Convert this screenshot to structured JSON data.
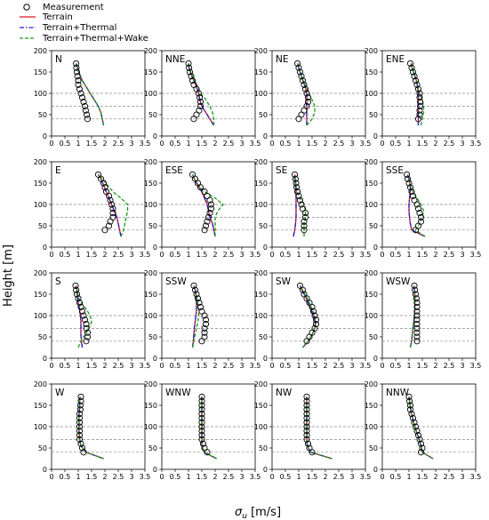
{
  "legend": {
    "measurement": "Measurement",
    "terrain": "Terrain",
    "terrain_thermal": "Terrain+Thermal",
    "terrain_thermal_wake": "Terrain+Thermal+Wake"
  },
  "axis": {
    "xlabel_main": "σ",
    "xlabel_sub": "u",
    "xlabel_unit": " [m/s]",
    "ylabel": "Height [m]"
  },
  "colors": {
    "measurement": "#000000",
    "terrain": "#e8141e",
    "terrain_thermal": "#1f1fd6",
    "terrain_thermal_wake": "#1a9a1a",
    "reference_lines": "#888888"
  },
  "chart_data": {
    "type": "line",
    "panel_layout": "4x4 grid of wind directions",
    "xlim": [
      0,
      3.5
    ],
    "ylim": [
      0,
      200
    ],
    "x_ticks": [
      "0",
      "0.5",
      "1",
      "1.5",
      "2",
      "2.5",
      "3",
      "3.5"
    ],
    "y_ticks": [
      "0",
      "50",
      "100",
      "150",
      "200"
    ],
    "reference_heights": [
      40,
      70,
      100
    ],
    "measurement_heights": [
      40,
      50,
      60,
      70,
      80,
      90,
      100,
      110,
      120,
      130,
      140,
      150,
      160,
      170
    ],
    "model_heights": [
      25,
      40,
      55,
      70,
      85,
      100,
      115,
      130,
      145,
      160,
      170
    ],
    "panels": [
      {
        "direction": "N",
        "measurement": [
          1.35,
          1.32,
          1.28,
          1.25,
          1.2,
          1.15,
          1.1,
          1.05,
          1.0,
          1.0,
          0.97,
          0.95,
          0.93,
          0.92
        ],
        "terrain": [
          1.95,
          1.9,
          1.85,
          1.75,
          1.6,
          1.45,
          1.3,
          1.15,
          1.05,
          0.97,
          0.93
        ],
        "terrain_thermal": [
          1.95,
          1.9,
          1.85,
          1.75,
          1.6,
          1.45,
          1.3,
          1.15,
          1.05,
          0.97,
          0.93
        ],
        "terrain_thermal_wake": [
          1.95,
          1.9,
          1.85,
          1.75,
          1.6,
          1.45,
          1.3,
          1.15,
          1.05,
          0.97,
          0.93
        ]
      },
      {
        "direction": "NNE",
        "measurement": [
          1.2,
          1.3,
          1.4,
          1.45,
          1.45,
          1.42,
          1.38,
          1.3,
          1.2,
          1.15,
          1.1,
          1.05,
          1.02,
          1.0
        ],
        "terrain": [
          1.95,
          1.8,
          1.65,
          1.5,
          1.42,
          1.38,
          1.3,
          1.2,
          1.1,
          1.02,
          1.0
        ],
        "terrain_thermal": [
          1.95,
          1.8,
          1.65,
          1.5,
          1.42,
          1.38,
          1.3,
          1.2,
          1.1,
          1.02,
          1.0
        ],
        "terrain_thermal_wake": [
          1.95,
          1.95,
          1.9,
          1.8,
          1.65,
          1.45,
          1.35,
          1.22,
          1.12,
          1.03,
          1.0
        ]
      },
      {
        "direction": "NE",
        "measurement": [
          1.0,
          1.1,
          1.2,
          1.3,
          1.35,
          1.35,
          1.3,
          1.25,
          1.2,
          1.15,
          1.1,
          1.05,
          1.0,
          0.95
        ],
        "terrain": [
          1.3,
          1.3,
          1.3,
          1.3,
          1.3,
          1.3,
          1.25,
          1.15,
          1.08,
          1.0,
          0.97
        ],
        "terrain_thermal": [
          1.3,
          1.3,
          1.3,
          1.3,
          1.3,
          1.3,
          1.25,
          1.15,
          1.08,
          1.0,
          0.97
        ],
        "terrain_thermal_wake": [
          1.3,
          1.5,
          1.6,
          1.6,
          1.5,
          1.38,
          1.28,
          1.17,
          1.08,
          1.0,
          0.97
        ]
      },
      {
        "direction": "ENE",
        "measurement": [
          1.35,
          1.4,
          1.4,
          1.42,
          1.42,
          1.4,
          1.4,
          1.35,
          1.3,
          1.25,
          1.2,
          1.15,
          1.1,
          1.05
        ],
        "terrain": [
          1.35,
          1.35,
          1.35,
          1.35,
          1.35,
          1.35,
          1.32,
          1.28,
          1.2,
          1.12,
          1.08
        ],
        "terrain_thermal": [
          1.35,
          1.35,
          1.35,
          1.35,
          1.35,
          1.35,
          1.32,
          1.28,
          1.2,
          1.12,
          1.08
        ],
        "terrain_thermal_wake": [
          1.45,
          1.5,
          1.55,
          1.55,
          1.5,
          1.4,
          1.33,
          1.28,
          1.2,
          1.12,
          1.08
        ]
      },
      {
        "direction": "E",
        "measurement": [
          2.0,
          2.15,
          2.2,
          2.3,
          2.3,
          2.3,
          2.25,
          2.2,
          2.15,
          2.05,
          2.0,
          1.95,
          1.85,
          1.75
        ],
        "terrain": [
          2.6,
          2.55,
          2.5,
          2.45,
          2.35,
          2.25,
          2.15,
          2.05,
          1.95,
          1.85,
          1.75
        ],
        "terrain_thermal": [
          2.6,
          2.55,
          2.5,
          2.45,
          2.35,
          2.25,
          2.15,
          2.05,
          1.95,
          1.85,
          1.75
        ],
        "terrain_thermal_wake": [
          2.6,
          2.7,
          2.75,
          2.8,
          2.85,
          2.85,
          2.6,
          2.3,
          2.1,
          1.9,
          1.75
        ]
      },
      {
        "direction": "ESE",
        "measurement": [
          1.6,
          1.65,
          1.7,
          1.75,
          1.8,
          1.85,
          1.85,
          1.8,
          1.7,
          1.6,
          1.45,
          1.35,
          1.25,
          1.15
        ],
        "terrain": [
          2.0,
          1.95,
          1.9,
          1.8,
          1.75,
          1.7,
          1.6,
          1.5,
          1.35,
          1.22,
          1.15
        ],
        "terrain_thermal": [
          2.0,
          1.95,
          1.9,
          1.8,
          1.75,
          1.7,
          1.6,
          1.5,
          1.35,
          1.22,
          1.15
        ],
        "terrain_thermal_wake": [
          2.0,
          2.0,
          2.0,
          2.0,
          2.1,
          2.3,
          2.0,
          1.6,
          1.38,
          1.23,
          1.15
        ]
      },
      {
        "direction": "SE",
        "measurement": [
          1.2,
          1.2,
          1.2,
          1.25,
          1.25,
          1.15,
          1.1,
          1.05,
          1.0,
          0.95,
          0.92,
          0.9,
          0.88,
          0.85
        ],
        "terrain": [
          0.8,
          0.85,
          0.88,
          0.9,
          0.9,
          0.9,
          0.9,
          0.9,
          0.88,
          0.85,
          0.85
        ],
        "terrain_thermal": [
          0.8,
          0.85,
          0.88,
          0.9,
          0.9,
          0.9,
          0.9,
          0.9,
          0.88,
          0.85,
          0.85
        ],
        "terrain_thermal_wake": [
          1.2,
          1.2,
          1.2,
          1.25,
          1.25,
          1.2,
          1.05,
          0.95,
          0.9,
          0.87,
          0.85
        ]
      },
      {
        "direction": "SSE",
        "measurement": [
          1.25,
          1.35,
          1.45,
          1.45,
          1.4,
          1.35,
          1.3,
          1.2,
          1.15,
          1.1,
          1.05,
          1.0,
          0.95,
          0.92
        ],
        "terrain": [
          1.6,
          1.1,
          1.05,
          1.02,
          1.0,
          1.0,
          1.02,
          1.05,
          1.05,
          1.0,
          0.95
        ],
        "terrain_thermal": [
          1.6,
          1.1,
          1.05,
          1.02,
          1.0,
          1.0,
          1.02,
          1.05,
          1.05,
          1.0,
          0.95
        ],
        "terrain_thermal_wake": [
          1.6,
          1.25,
          1.4,
          1.5,
          1.55,
          1.45,
          1.3,
          1.15,
          1.05,
          1.0,
          0.95
        ]
      },
      {
        "direction": "S",
        "measurement": [
          1.3,
          1.35,
          1.35,
          1.3,
          1.3,
          1.25,
          1.2,
          1.15,
          1.1,
          1.05,
          1.0,
          0.95,
          0.92,
          0.9
        ],
        "terrain": [
          1.15,
          1.12,
          1.1,
          1.1,
          1.1,
          1.08,
          1.05,
          1.0,
          0.97,
          0.95,
          0.92
        ],
        "terrain_thermal": [
          1.15,
          1.12,
          1.1,
          1.1,
          1.1,
          1.08,
          1.05,
          1.0,
          0.97,
          0.95,
          0.92
        ],
        "terrain_thermal_wake": [
          1.0,
          1.1,
          1.25,
          1.4,
          1.5,
          1.45,
          1.3,
          1.1,
          1.0,
          0.95,
          0.92
        ]
      },
      {
        "direction": "SSW",
        "measurement": [
          1.5,
          1.6,
          1.6,
          1.6,
          1.65,
          1.65,
          1.6,
          1.5,
          1.45,
          1.4,
          1.35,
          1.3,
          1.25,
          1.2
        ],
        "terrain": [
          1.15,
          1.18,
          1.2,
          1.22,
          1.25,
          1.28,
          1.3,
          1.3,
          1.28,
          1.25,
          1.2
        ],
        "terrain_thermal": [
          1.15,
          1.18,
          1.2,
          1.22,
          1.25,
          1.28,
          1.3,
          1.3,
          1.28,
          1.25,
          1.2
        ],
        "terrain_thermal_wake": [
          1.15,
          1.2,
          1.25,
          1.3,
          1.35,
          1.38,
          1.38,
          1.35,
          1.3,
          1.25,
          1.2
        ]
      },
      {
        "direction": "SW",
        "measurement": [
          1.3,
          1.4,
          1.5,
          1.6,
          1.65,
          1.65,
          1.6,
          1.55,
          1.5,
          1.4,
          1.3,
          1.2,
          1.15,
          1.05
        ],
        "terrain": [
          1.15,
          1.35,
          1.5,
          1.6,
          1.62,
          1.55,
          1.45,
          1.35,
          1.25,
          1.12,
          1.05
        ],
        "terrain_thermal": [
          1.15,
          1.35,
          1.5,
          1.6,
          1.62,
          1.55,
          1.45,
          1.35,
          1.25,
          1.12,
          1.05
        ],
        "terrain_thermal_wake": [
          1.15,
          1.35,
          1.5,
          1.6,
          1.65,
          1.6,
          1.5,
          1.4,
          1.28,
          1.15,
          1.05
        ]
      },
      {
        "direction": "WSW",
        "measurement": [
          1.3,
          1.3,
          1.3,
          1.3,
          1.3,
          1.3,
          1.3,
          1.3,
          1.3,
          1.3,
          1.28,
          1.25,
          1.22,
          1.2
        ],
        "terrain": [
          1.05,
          1.1,
          1.12,
          1.15,
          1.18,
          1.2,
          1.22,
          1.22,
          1.22,
          1.2,
          1.18
        ],
        "terrain_thermal": [
          1.05,
          1.1,
          1.12,
          1.15,
          1.18,
          1.2,
          1.22,
          1.22,
          1.22,
          1.2,
          1.18
        ],
        "terrain_thermal_wake": [
          1.05,
          1.1,
          1.12,
          1.15,
          1.18,
          1.2,
          1.22,
          1.22,
          1.22,
          1.2,
          1.18
        ]
      },
      {
        "direction": "W",
        "measurement": [
          1.2,
          1.15,
          1.1,
          1.05,
          1.05,
          1.05,
          1.05,
          1.05,
          1.05,
          1.05,
          1.08,
          1.08,
          1.1,
          1.1
        ],
        "terrain": [
          1.95,
          1.3,
          1.1,
          1.05,
          1.03,
          1.03,
          1.03,
          1.03,
          1.05,
          1.05,
          1.07
        ],
        "terrain_thermal": [
          1.95,
          1.3,
          1.1,
          1.05,
          1.03,
          1.03,
          1.03,
          1.03,
          1.05,
          1.05,
          1.07
        ],
        "terrain_thermal_wake": [
          1.95,
          1.3,
          1.1,
          1.05,
          1.03,
          1.03,
          1.03,
          1.03,
          1.05,
          1.05,
          1.07
        ]
      },
      {
        "direction": "WNW",
        "measurement": [
          1.7,
          1.6,
          1.55,
          1.5,
          1.5,
          1.5,
          1.5,
          1.5,
          1.5,
          1.5,
          1.5,
          1.5,
          1.5,
          1.5
        ],
        "terrain": [
          2.05,
          1.6,
          1.5,
          1.5,
          1.5,
          1.5,
          1.5,
          1.5,
          1.5,
          1.5,
          1.5
        ],
        "terrain_thermal": [
          2.05,
          1.6,
          1.5,
          1.5,
          1.5,
          1.5,
          1.5,
          1.5,
          1.5,
          1.5,
          1.5
        ],
        "terrain_thermal_wake": [
          2.05,
          1.6,
          1.5,
          1.5,
          1.5,
          1.5,
          1.5,
          1.5,
          1.5,
          1.5,
          1.5
        ]
      },
      {
        "direction": "NW",
        "measurement": [
          1.5,
          1.4,
          1.35,
          1.3,
          1.3,
          1.3,
          1.3,
          1.3,
          1.3,
          1.3,
          1.3,
          1.3,
          1.3,
          1.3
        ],
        "terrain": [
          2.25,
          1.45,
          1.32,
          1.3,
          1.3,
          1.3,
          1.3,
          1.3,
          1.3,
          1.3,
          1.3
        ],
        "terrain_thermal": [
          2.25,
          1.45,
          1.32,
          1.3,
          1.3,
          1.3,
          1.3,
          1.3,
          1.3,
          1.3,
          1.3
        ],
        "terrain_thermal_wake": [
          2.25,
          1.45,
          1.32,
          1.3,
          1.3,
          1.3,
          1.3,
          1.3,
          1.3,
          1.3,
          1.3
        ]
      },
      {
        "direction": "NNW",
        "measurement": [
          1.45,
          1.5,
          1.45,
          1.4,
          1.35,
          1.3,
          1.25,
          1.2,
          1.15,
          1.1,
          1.05,
          1.05,
          1.02,
          1.0
        ],
        "terrain": [
          1.9,
          1.5,
          1.45,
          1.38,
          1.3,
          1.22,
          1.15,
          1.1,
          1.05,
          1.02,
          1.0
        ],
        "terrain_thermal": [
          1.9,
          1.5,
          1.45,
          1.38,
          1.3,
          1.22,
          1.15,
          1.1,
          1.05,
          1.02,
          1.0
        ],
        "terrain_thermal_wake": [
          1.9,
          1.5,
          1.45,
          1.38,
          1.3,
          1.22,
          1.15,
          1.1,
          1.05,
          1.02,
          1.0
        ]
      }
    ]
  }
}
